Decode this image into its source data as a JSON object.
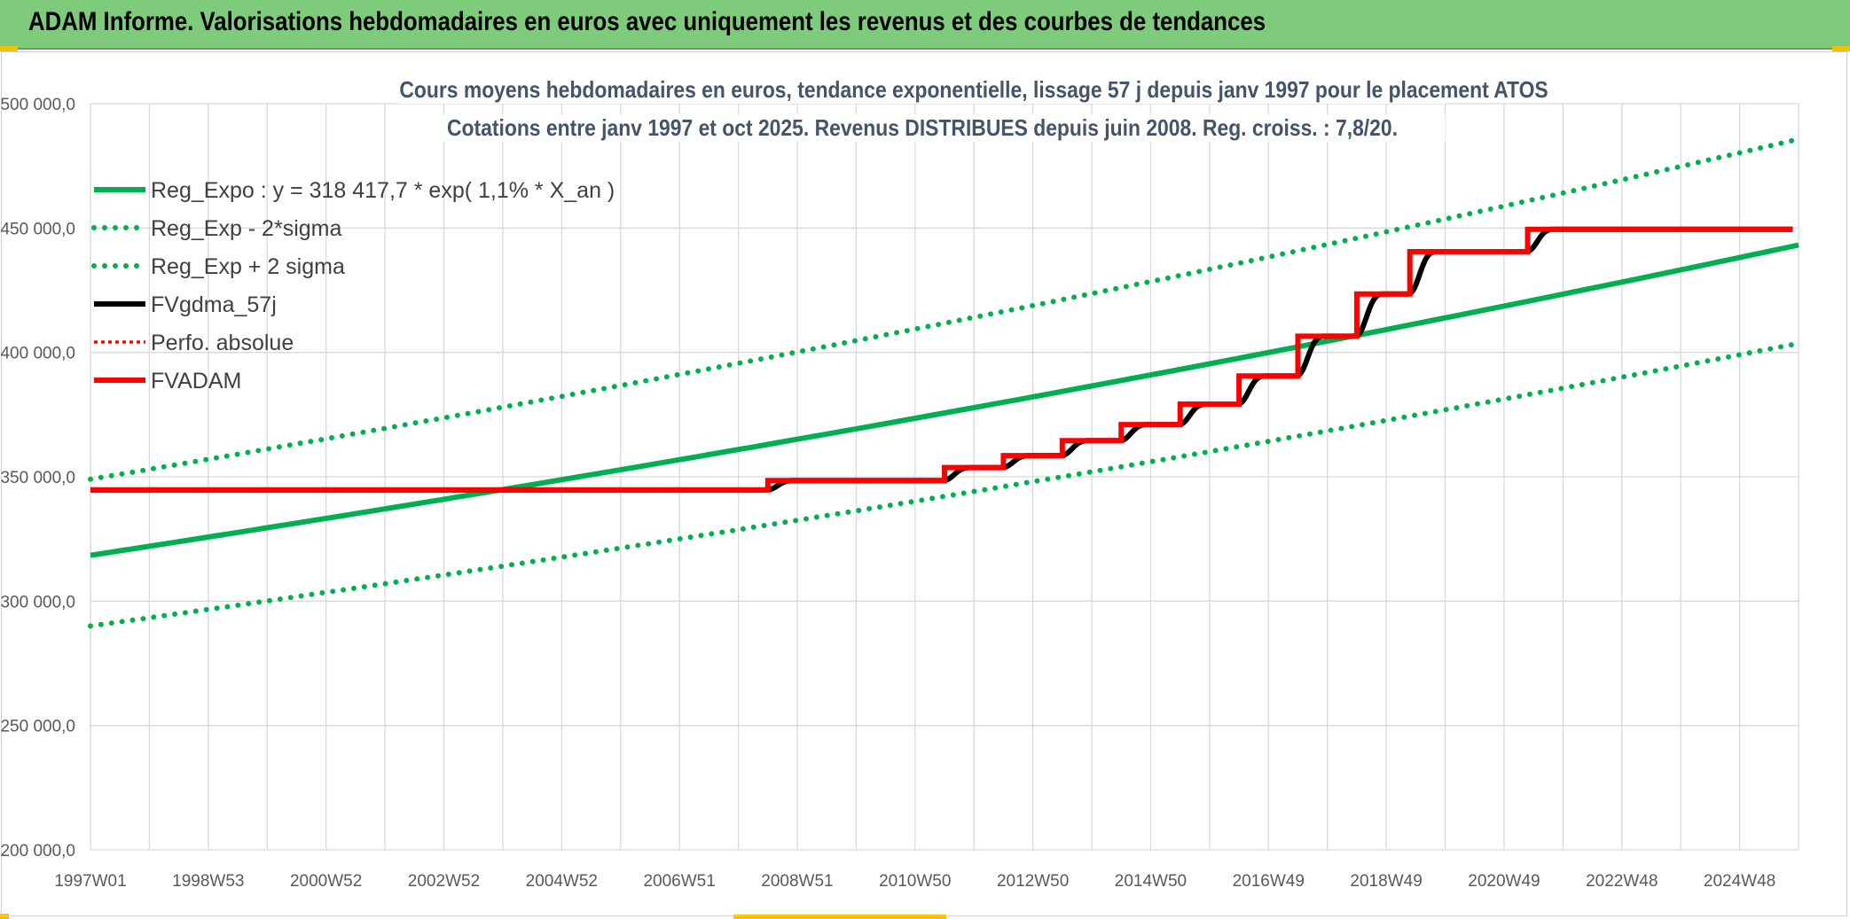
{
  "banner": {
    "title": "ADAM Informe. Valorisations hebdomadaires en euros avec uniquement les revenus et des courbes de tendances"
  },
  "colors": {
    "banner_bg": "#7ecb7b",
    "green": "#00b050",
    "red": "#ff0000",
    "black": "#000000",
    "title_text": "#44546a"
  },
  "chart_data": {
    "type": "line",
    "title_line1": "Cours moyens hebdomadaires en euros, tendance exponentielle, lissage 57 j depuis janv 1997 pour le placement ATOS",
    "title_line2": "Cotations entre janv 1997 et oct 2025. Revenus DISTRIBUES depuis juin 2008. Reg. croiss. : 7,8/20.",
    "y_ticks": [
      "500 000,0",
      "450 000,0",
      "400 000,0",
      "350 000,0",
      "300 000,0",
      "250 000,0",
      "200 000,0"
    ],
    "x_ticks": [
      "1997W01",
      "1998W53",
      "2000W52",
      "2002W52",
      "2004W52",
      "2006W51",
      "2008W51",
      "2010W50",
      "2012W50",
      "2014W50",
      "2016W49",
      "2018W49",
      "2020W49",
      "2022W48",
      "2024W48"
    ],
    "ylim": [
      200000,
      500000
    ],
    "grid": true,
    "legend_position": "top-left",
    "legend": [
      {
        "label": "Reg_Expo : y = 318 417,7 * exp( 1,1% *  X_an )",
        "color": "#00b050",
        "dash": "solid"
      },
      {
        "label": "Reg_Exp - 2*sigma",
        "color": "#00b050",
        "dash": "dotted"
      },
      {
        "label": "Reg_Exp + 2 sigma",
        "color": "#00b050",
        "dash": "dotted"
      },
      {
        "label": "FVgdma_57j",
        "color": "#000000",
        "dash": "solid"
      },
      {
        "label": "Perfo. absolue",
        "color": "#ff0000",
        "dash": "dotted"
      },
      {
        "label": "FVADAM",
        "color": "#ff0000",
        "dash": "solid"
      }
    ],
    "series": [
      {
        "name": "Reg_Expo : y = 318 417,7 * exp( 1,1% *  X_an )",
        "kind": "exp",
        "a": 318417.7,
        "rate": 0.0114
      },
      {
        "name": "Reg_Exp - 2*sigma",
        "kind": "exp",
        "a": 290000,
        "rate": 0.0114
      },
      {
        "name": "Reg_Exp + 2 sigma",
        "kind": "exp",
        "a": 349000,
        "rate": 0.0114
      },
      {
        "name": "FVADAM",
        "kind": "steps",
        "start_value": 344700,
        "end_year": 2025.9,
        "steps": [
          {
            "year": 2008.5,
            "value": 348500
          },
          {
            "year": 2011.5,
            "value": 353700
          },
          {
            "year": 2012.5,
            "value": 358500
          },
          {
            "year": 2013.5,
            "value": 364500
          },
          {
            "year": 2014.5,
            "value": 371000
          },
          {
            "year": 2015.5,
            "value": 379200
          },
          {
            "year": 2016.5,
            "value": 390500
          },
          {
            "year": 2017.5,
            "value": 406500
          },
          {
            "year": 2018.5,
            "value": 423500
          },
          {
            "year": 2019.4,
            "value": 440500
          },
          {
            "year": 2021.4,
            "value": 449500
          }
        ]
      }
    ]
  }
}
